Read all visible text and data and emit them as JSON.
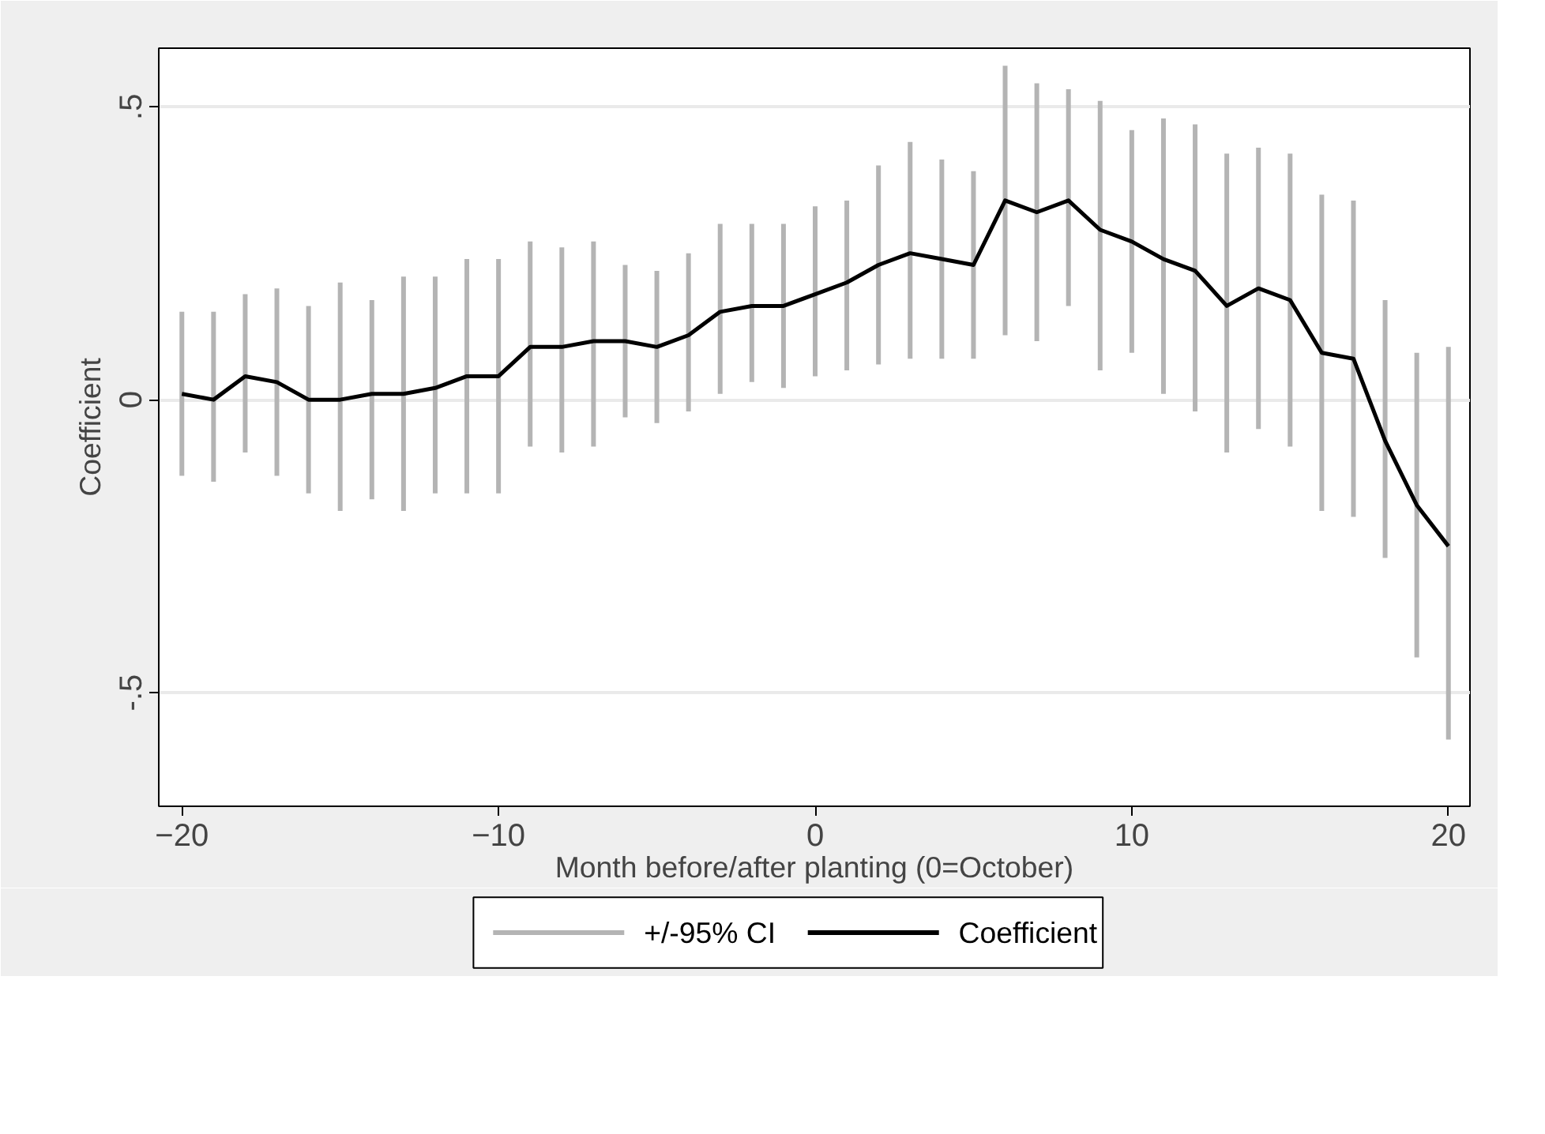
{
  "chart_data": {
    "type": "line",
    "annotations": [
      "+/-95% CI"
    ],
    "xlabel": "Month before/after planting (0=October)",
    "ylabel": "Coefficient",
    "x": [
      -20,
      -19,
      -18,
      -17,
      -16,
      -15,
      -14,
      -13,
      -12,
      -11,
      -10,
      -9,
      -8,
      -7,
      -6,
      -5,
      -4,
      -3,
      -2,
      -1,
      0,
      1,
      2,
      3,
      4,
      5,
      6,
      7,
      8,
      9,
      10,
      11,
      12,
      13,
      14,
      15,
      16,
      17,
      18,
      19,
      20
    ],
    "series": [
      {
        "name": "Coefficient",
        "color": "#000000",
        "values": [
          0.01,
          0.0,
          0.04,
          0.03,
          0.0,
          0.0,
          0.01,
          0.01,
          0.02,
          0.04,
          0.04,
          0.09,
          0.09,
          0.1,
          0.1,
          0.09,
          0.11,
          0.15,
          0.16,
          0.16,
          0.18,
          0.2,
          0.23,
          0.25,
          0.24,
          0.23,
          0.34,
          0.32,
          0.34,
          0.29,
          0.27,
          0.24,
          0.22,
          0.16,
          0.19,
          0.17,
          0.08,
          0.07,
          -0.07,
          -0.18,
          -0.25
        ],
        "errors": [
          [
            -0.13,
            0.15
          ],
          [
            -0.14,
            0.15
          ],
          [
            -0.09,
            0.18
          ],
          [
            -0.13,
            0.19
          ],
          [
            -0.16,
            0.16
          ],
          [
            -0.19,
            0.2
          ],
          [
            -0.17,
            0.17
          ],
          [
            -0.19,
            0.21
          ],
          [
            -0.16,
            0.21
          ],
          [
            -0.16,
            0.24
          ],
          [
            -0.16,
            0.24
          ],
          [
            -0.08,
            0.27
          ],
          [
            -0.09,
            0.26
          ],
          [
            -0.08,
            0.27
          ],
          [
            -0.03,
            0.23
          ],
          [
            -0.04,
            0.22
          ],
          [
            -0.02,
            0.25
          ],
          [
            0.01,
            0.3
          ],
          [
            0.03,
            0.3
          ],
          [
            0.02,
            0.3
          ],
          [
            0.04,
            0.33
          ],
          [
            0.05,
            0.34
          ],
          [
            0.06,
            0.4
          ],
          [
            0.07,
            0.44
          ],
          [
            0.07,
            0.41
          ],
          [
            0.07,
            0.39
          ],
          [
            0.11,
            0.57
          ],
          [
            0.1,
            0.54
          ],
          [
            0.16,
            0.53
          ],
          [
            0.05,
            0.51
          ],
          [
            0.08,
            0.46
          ],
          [
            0.01,
            0.48
          ],
          [
            -0.02,
            0.47
          ],
          [
            -0.09,
            0.42
          ],
          [
            -0.05,
            0.43
          ],
          [
            -0.08,
            0.42
          ],
          [
            -0.19,
            0.35
          ],
          [
            -0.2,
            0.34
          ],
          [
            -0.27,
            0.17
          ],
          [
            -0.44,
            0.08
          ],
          [
            -0.58,
            0.09
          ]
        ]
      }
    ],
    "xlim": [
      -20.73,
      20.68
    ],
    "ylim": [
      -0.694,
      0.6
    ],
    "xticks": [
      -20,
      -10,
      0,
      10,
      20
    ],
    "yticks": [
      {
        "value": -0.5,
        "label": "-.5"
      },
      {
        "value": 0,
        "label": "0"
      },
      {
        "value": 0.5,
        "label": ".5"
      }
    ],
    "grid": "y",
    "legend": "bottom"
  }
}
